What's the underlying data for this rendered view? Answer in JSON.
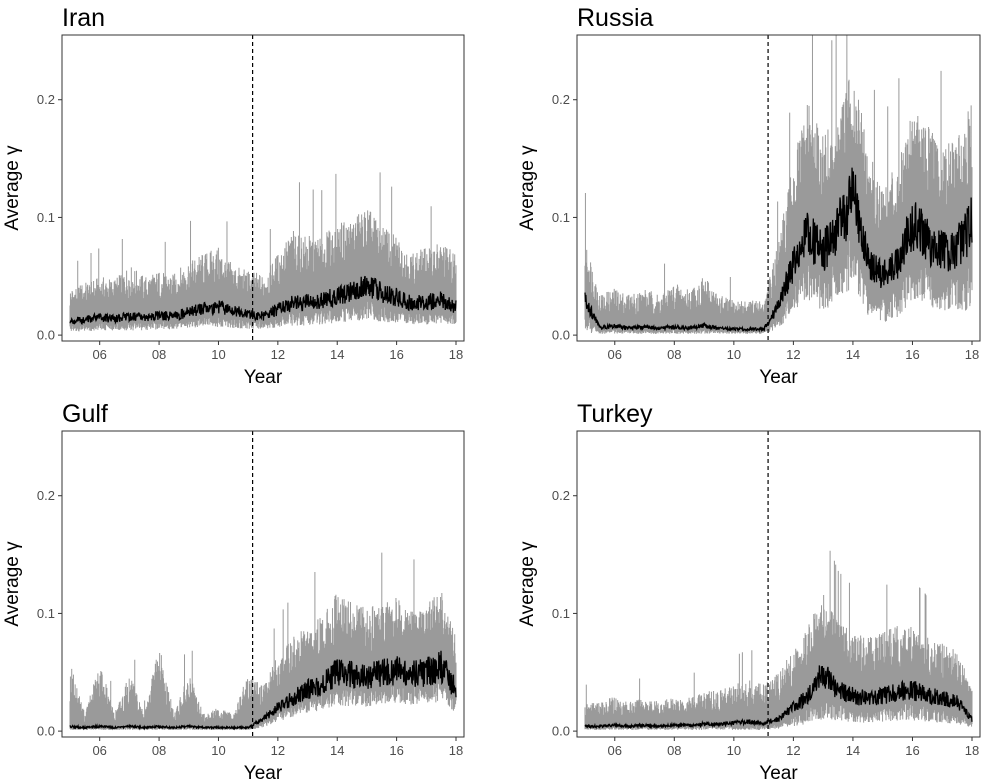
{
  "chart_data": [
    {
      "type": "line",
      "title": "Iran",
      "xlabel": "Year",
      "ylabel": "Average γ",
      "xlim": [
        5,
        18
      ],
      "ylim": [
        -0.005,
        0.255
      ],
      "x_ticks": [
        6,
        8,
        10,
        12,
        14,
        16,
        18
      ],
      "x_tick_labels": [
        "06",
        "08",
        "10",
        "12",
        "14",
        "16",
        "18"
      ],
      "y_ticks": [
        0,
        0.1,
        0.2
      ],
      "y_tick_labels": [
        "0.0",
        "0.1",
        "0.2"
      ],
      "vline_x": 11.15,
      "band_color": "#9a9a9a",
      "line_color": "#000000",
      "series": [
        {
          "x": [
            5.0,
            5.5,
            6.0,
            6.5,
            7.0,
            7.5,
            8.0,
            8.5,
            9.0,
            9.5,
            10.0,
            10.5,
            11.0,
            11.5,
            12.0,
            12.5,
            13.0,
            13.5,
            14.0,
            14.5,
            15.0,
            15.5,
            16.0,
            16.5,
            17.0,
            17.5,
            18.0
          ],
          "mean": [
            0.012,
            0.013,
            0.015,
            0.014,
            0.016,
            0.015,
            0.017,
            0.016,
            0.02,
            0.022,
            0.024,
            0.021,
            0.018,
            0.016,
            0.022,
            0.027,
            0.028,
            0.03,
            0.033,
            0.037,
            0.042,
            0.036,
            0.032,
            0.027,
            0.028,
            0.03,
            0.024
          ],
          "upper": [
            0.04,
            0.045,
            0.05,
            0.048,
            0.06,
            0.05,
            0.055,
            0.052,
            0.065,
            0.07,
            0.075,
            0.06,
            0.055,
            0.052,
            0.07,
            0.09,
            0.085,
            0.085,
            0.095,
            0.1,
            0.11,
            0.095,
            0.085,
            0.07,
            0.075,
            0.08,
            0.07
          ],
          "lower": [
            0.003,
            0.003,
            0.004,
            0.004,
            0.004,
            0.004,
            0.005,
            0.005,
            0.006,
            0.006,
            0.007,
            0.006,
            0.005,
            0.005,
            0.006,
            0.008,
            0.008,
            0.009,
            0.01,
            0.012,
            0.013,
            0.011,
            0.01,
            0.009,
            0.009,
            0.01,
            0.008
          ]
        }
      ]
    },
    {
      "type": "line",
      "title": "Russia",
      "xlabel": "Year",
      "ylabel": "Average γ",
      "xlim": [
        5,
        18
      ],
      "ylim": [
        -0.005,
        0.255
      ],
      "x_ticks": [
        6,
        8,
        10,
        12,
        14,
        16,
        18
      ],
      "x_tick_labels": [
        "06",
        "08",
        "10",
        "12",
        "14",
        "16",
        "18"
      ],
      "y_ticks": [
        0,
        0.1,
        0.2
      ],
      "y_tick_labels": [
        "0.0",
        "0.1",
        "0.2"
      ],
      "vline_x": 11.15,
      "band_color": "#9a9a9a",
      "line_color": "#000000",
      "series": [
        {
          "x": [
            5.0,
            5.5,
            6.0,
            6.5,
            7.0,
            7.5,
            8.0,
            8.5,
            9.0,
            9.5,
            10.0,
            10.5,
            11.0,
            11.5,
            12.0,
            12.5,
            13.0,
            13.5,
            14.0,
            14.5,
            15.0,
            15.5,
            16.0,
            16.5,
            17.0,
            17.5,
            18.0
          ],
          "mean": [
            0.03,
            0.006,
            0.008,
            0.006,
            0.007,
            0.006,
            0.007,
            0.006,
            0.008,
            0.006,
            0.005,
            0.005,
            0.005,
            0.025,
            0.06,
            0.085,
            0.07,
            0.09,
            0.12,
            0.065,
            0.05,
            0.06,
            0.095,
            0.08,
            0.07,
            0.075,
            0.095
          ],
          "upper": [
            0.085,
            0.035,
            0.04,
            0.035,
            0.04,
            0.035,
            0.045,
            0.04,
            0.05,
            0.035,
            0.03,
            0.03,
            0.03,
            0.08,
            0.15,
            0.2,
            0.17,
            0.19,
            0.23,
            0.16,
            0.13,
            0.15,
            0.2,
            0.18,
            0.16,
            0.17,
            0.2
          ],
          "lower": [
            0.002,
            0.001,
            0.001,
            0.001,
            0.001,
            0.001,
            0.001,
            0.001,
            0.001,
            0.001,
            0.001,
            0.001,
            0.001,
            0.005,
            0.02,
            0.03,
            0.02,
            0.03,
            0.04,
            0.015,
            0.01,
            0.015,
            0.03,
            0.025,
            0.02,
            0.02,
            0.02
          ]
        }
      ]
    },
    {
      "type": "line",
      "title": "Gulf",
      "xlabel": "Year",
      "ylabel": "Average γ",
      "xlim": [
        5,
        18
      ],
      "ylim": [
        -0.005,
        0.255
      ],
      "x_ticks": [
        6,
        8,
        10,
        12,
        14,
        16,
        18
      ],
      "x_tick_labels": [
        "06",
        "08",
        "10",
        "12",
        "14",
        "16",
        "18"
      ],
      "y_ticks": [
        0,
        0.1,
        0.2
      ],
      "y_tick_labels": [
        "0.0",
        "0.1",
        "0.2"
      ],
      "vline_x": 11.15,
      "band_color": "#9a9a9a",
      "line_color": "#000000",
      "series": [
        {
          "x": [
            5.0,
            5.5,
            6.0,
            6.5,
            7.0,
            7.5,
            8.0,
            8.5,
            9.0,
            9.5,
            10.0,
            10.5,
            11.0,
            11.5,
            12.0,
            12.5,
            13.0,
            13.5,
            14.0,
            14.5,
            15.0,
            15.5,
            16.0,
            16.5,
            17.0,
            17.5,
            18.0
          ],
          "mean": [
            0.004,
            0.003,
            0.004,
            0.003,
            0.004,
            0.003,
            0.004,
            0.003,
            0.004,
            0.003,
            0.003,
            0.003,
            0.003,
            0.01,
            0.02,
            0.028,
            0.035,
            0.04,
            0.05,
            0.048,
            0.045,
            0.05,
            0.052,
            0.048,
            0.05,
            0.055,
            0.035
          ],
          "upper": [
            0.06,
            0.015,
            0.06,
            0.015,
            0.05,
            0.015,
            0.075,
            0.015,
            0.05,
            0.015,
            0.02,
            0.015,
            0.05,
            0.04,
            0.065,
            0.08,
            0.09,
            0.1,
            0.12,
            0.11,
            0.105,
            0.11,
            0.115,
            0.105,
            0.11,
            0.12,
            0.08
          ],
          "lower": [
            0.001,
            0.001,
            0.001,
            0.001,
            0.001,
            0.001,
            0.001,
            0.001,
            0.001,
            0.001,
            0.001,
            0.001,
            0.001,
            0.003,
            0.008,
            0.012,
            0.015,
            0.018,
            0.022,
            0.021,
            0.02,
            0.022,
            0.024,
            0.022,
            0.023,
            0.025,
            0.015
          ]
        }
      ]
    },
    {
      "type": "line",
      "title": "Turkey",
      "xlabel": "Year",
      "ylabel": "Average γ",
      "xlim": [
        5,
        18
      ],
      "ylim": [
        -0.005,
        0.255
      ],
      "x_ticks": [
        6,
        8,
        10,
        12,
        14,
        16,
        18
      ],
      "x_tick_labels": [
        "06",
        "08",
        "10",
        "12",
        "14",
        "16",
        "18"
      ],
      "y_ticks": [
        0,
        0.1,
        0.2
      ],
      "y_tick_labels": [
        "0.0",
        "0.1",
        "0.2"
      ],
      "vline_x": 11.15,
      "band_color": "#9a9a9a",
      "line_color": "#000000",
      "series": [
        {
          "x": [
            5.0,
            5.5,
            6.0,
            6.5,
            7.0,
            7.5,
            8.0,
            8.5,
            9.0,
            9.5,
            10.0,
            10.5,
            11.0,
            11.5,
            12.0,
            12.5,
            13.0,
            13.5,
            14.0,
            14.5,
            15.0,
            15.5,
            16.0,
            16.5,
            17.0,
            17.5,
            18.0
          ],
          "mean": [
            0.004,
            0.004,
            0.005,
            0.004,
            0.005,
            0.004,
            0.005,
            0.005,
            0.006,
            0.006,
            0.007,
            0.008,
            0.007,
            0.01,
            0.02,
            0.03,
            0.05,
            0.035,
            0.03,
            0.028,
            0.03,
            0.033,
            0.035,
            0.03,
            0.028,
            0.025,
            0.01
          ],
          "upper": [
            0.025,
            0.025,
            0.03,
            0.025,
            0.03,
            0.025,
            0.03,
            0.03,
            0.035,
            0.035,
            0.04,
            0.045,
            0.04,
            0.05,
            0.07,
            0.09,
            0.12,
            0.095,
            0.085,
            0.08,
            0.085,
            0.09,
            0.09,
            0.08,
            0.075,
            0.07,
            0.04
          ],
          "lower": [
            0.001,
            0.001,
            0.001,
            0.001,
            0.001,
            0.001,
            0.001,
            0.001,
            0.001,
            0.001,
            0.001,
            0.001,
            0.001,
            0.002,
            0.004,
            0.006,
            0.01,
            0.008,
            0.007,
            0.007,
            0.008,
            0.009,
            0.009,
            0.008,
            0.007,
            0.006,
            0.002
          ]
        }
      ]
    }
  ]
}
